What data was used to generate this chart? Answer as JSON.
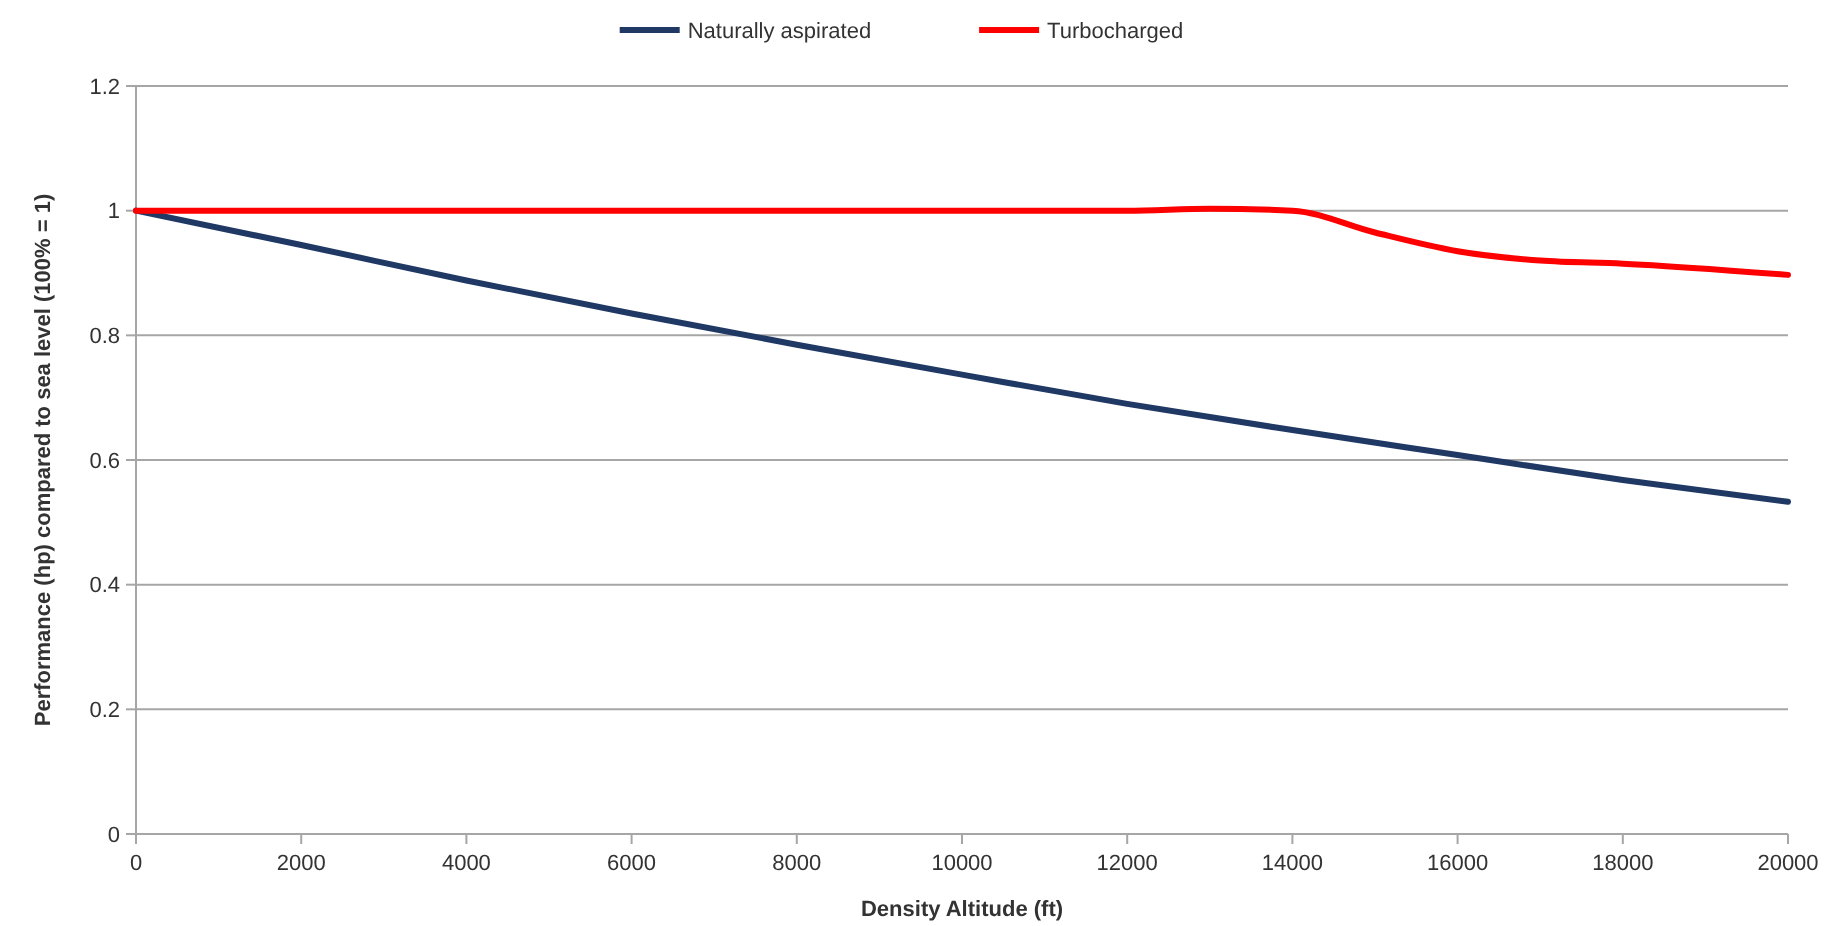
{
  "chart_data": {
    "type": "line",
    "xlabel": "Density Altitude (ft)",
    "ylabel": "Performance (hp) compared to sea level (100% = 1)",
    "xlim": [
      0,
      20000
    ],
    "xticks": [
      0,
      2000,
      4000,
      6000,
      8000,
      10000,
      12000,
      14000,
      16000,
      18000,
      20000
    ],
    "ylim": [
      0,
      1.2
    ],
    "yticks": [
      0,
      0.2,
      0.4,
      0.6,
      0.8,
      1,
      1.2
    ],
    "grid": "y",
    "legend": "top",
    "marker": "none",
    "line_style": "solid",
    "series": [
      {
        "name": "Naturally aspirated",
        "color": "#1f3864",
        "x": [
          0,
          2000,
          4000,
          6000,
          8000,
          10000,
          12000,
          14000,
          16000,
          18000,
          20000
        ],
        "values": [
          1,
          0.945,
          0.888,
          0.835,
          0.785,
          0.737,
          0.69,
          0.648,
          0.608,
          0.568,
          0.533
        ]
      },
      {
        "name": "Turbocharged",
        "color": "#ff0000",
        "x": [
          0,
          2000,
          4000,
          6000,
          8000,
          10000,
          12000,
          13000,
          14000,
          15000,
          16000,
          17000,
          18000,
          20000
        ],
        "values": [
          1,
          1,
          1,
          1,
          1,
          1,
          1,
          1.003,
          1,
          0.965,
          0.935,
          0.92,
          0.915,
          0.897
        ]
      }
    ]
  }
}
